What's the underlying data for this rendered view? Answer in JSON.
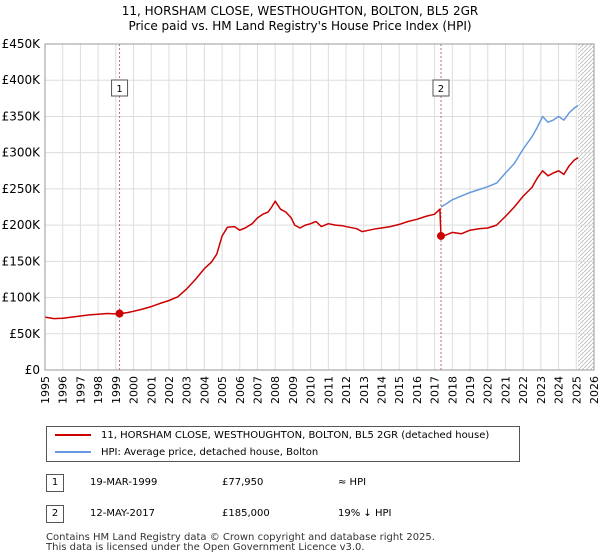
{
  "title_line1": "11, HORSHAM CLOSE, WESTHOUGHTON, BOLTON, BL5 2GR",
  "title_line2": "Price paid vs. HM Land Registry's House Price Index (HPI)",
  "chart_data": {
    "type": "line",
    "title": "Price paid vs. HM Land Registry's House Price Index (HPI)",
    "xlim": [
      1995,
      2026
    ],
    "ylim": [
      0,
      450000
    ],
    "y_ticks": [
      0,
      50000,
      100000,
      150000,
      200000,
      250000,
      300000,
      350000,
      400000,
      450000
    ],
    "y_tick_labels": [
      "£0",
      "£50K",
      "£100K",
      "£150K",
      "£200K",
      "£250K",
      "£300K",
      "£350K",
      "£400K",
      "£450K"
    ],
    "x_ticks": [
      1995,
      1996,
      1997,
      1998,
      1999,
      2000,
      2001,
      2002,
      2003,
      2004,
      2005,
      2006,
      2007,
      2008,
      2009,
      2010,
      2011,
      2012,
      2013,
      2014,
      2015,
      2016,
      2017,
      2018,
      2019,
      2020,
      2021,
      2022,
      2023,
      2024,
      2025,
      2026
    ],
    "grid": true,
    "series": [
      {
        "name": "11, HORSHAM CLOSE, WESTHOUGHTON, BOLTON, BL5 2GR (detached house)",
        "color": "#cc0000",
        "points": [
          [
            1995.0,
            73000
          ],
          [
            1995.5,
            71000
          ],
          [
            1996.0,
            71500
          ],
          [
            1996.5,
            73000
          ],
          [
            1997.0,
            74500
          ],
          [
            1997.5,
            76000
          ],
          [
            1998.0,
            77000
          ],
          [
            1998.5,
            78000
          ],
          [
            1999.0,
            77500
          ],
          [
            1999.21,
            77950
          ],
          [
            1999.6,
            79000
          ],
          [
            2000.0,
            81000
          ],
          [
            2000.5,
            84000
          ],
          [
            2001.0,
            87500
          ],
          [
            2001.5,
            92000
          ],
          [
            2002.0,
            96000
          ],
          [
            2002.5,
            101000
          ],
          [
            2003.0,
            112000
          ],
          [
            2003.5,
            125000
          ],
          [
            2004.0,
            140000
          ],
          [
            2004.4,
            149000
          ],
          [
            2004.7,
            160000
          ],
          [
            2005.0,
            185000
          ],
          [
            2005.3,
            197000
          ],
          [
            2005.7,
            198000
          ],
          [
            2006.0,
            193000
          ],
          [
            2006.3,
            196000
          ],
          [
            2006.7,
            202000
          ],
          [
            2007.0,
            210000
          ],
          [
            2007.3,
            215000
          ],
          [
            2007.6,
            218000
          ],
          [
            2007.8,
            225000
          ],
          [
            2008.0,
            233000
          ],
          [
            2008.3,
            222000
          ],
          [
            2008.6,
            218000
          ],
          [
            2008.9,
            210000
          ],
          [
            2009.1,
            200000
          ],
          [
            2009.4,
            196000
          ],
          [
            2009.7,
            200000
          ],
          [
            2010.0,
            202000
          ],
          [
            2010.3,
            205000
          ],
          [
            2010.6,
            198000
          ],
          [
            2011.0,
            202000
          ],
          [
            2011.4,
            200000
          ],
          [
            2011.8,
            199000
          ],
          [
            2012.2,
            197000
          ],
          [
            2012.6,
            195000
          ],
          [
            2012.9,
            191000
          ],
          [
            2013.3,
            193000
          ],
          [
            2013.7,
            195000
          ],
          [
            2014.0,
            196000
          ],
          [
            2014.5,
            198000
          ],
          [
            2015.0,
            201000
          ],
          [
            2015.5,
            205000
          ],
          [
            2016.0,
            208000
          ],
          [
            2016.5,
            212000
          ],
          [
            2017.0,
            215000
          ],
          [
            2017.3,
            222000
          ],
          [
            2017.36,
            185000
          ],
          [
            2017.6,
            186000
          ],
          [
            2018.0,
            190000
          ],
          [
            2018.5,
            188000
          ],
          [
            2019.0,
            193000
          ],
          [
            2019.5,
            195000
          ],
          [
            2020.0,
            196000
          ],
          [
            2020.5,
            200000
          ],
          [
            2021.0,
            212000
          ],
          [
            2021.5,
            225000
          ],
          [
            2022.0,
            240000
          ],
          [
            2022.5,
            252000
          ],
          [
            2022.8,
            265000
          ],
          [
            2023.1,
            275000
          ],
          [
            2023.4,
            268000
          ],
          [
            2023.7,
            272000
          ],
          [
            2024.0,
            275000
          ],
          [
            2024.3,
            270000
          ],
          [
            2024.6,
            282000
          ],
          [
            2024.9,
            290000
          ],
          [
            2025.1,
            293000
          ]
        ]
      },
      {
        "name": "HPI: Average price, detached house, Bolton",
        "color": "#6699dd",
        "points": [
          [
            2017.36,
            225000
          ],
          [
            2017.7,
            230000
          ],
          [
            2018.0,
            235000
          ],
          [
            2018.5,
            240000
          ],
          [
            2019.0,
            245000
          ],
          [
            2019.5,
            249000
          ],
          [
            2020.0,
            253000
          ],
          [
            2020.5,
            258000
          ],
          [
            2021.0,
            272000
          ],
          [
            2021.5,
            285000
          ],
          [
            2022.0,
            305000
          ],
          [
            2022.5,
            322000
          ],
          [
            2022.8,
            335000
          ],
          [
            2023.1,
            350000
          ],
          [
            2023.4,
            342000
          ],
          [
            2023.7,
            345000
          ],
          [
            2024.0,
            350000
          ],
          [
            2024.3,
            345000
          ],
          [
            2024.6,
            355000
          ],
          [
            2024.9,
            362000
          ],
          [
            2025.1,
            365000
          ]
        ]
      }
    ],
    "markers": [
      {
        "label": "1",
        "x": 1999.21,
        "y": 77950
      },
      {
        "label": "2",
        "x": 2017.36,
        "y": 185000
      }
    ],
    "hatch_from": 2025.1
  },
  "legend": {
    "red_label": "11, HORSHAM CLOSE, WESTHOUGHTON, BOLTON, BL5 2GR (detached house)",
    "blue_label": "HPI: Average price, detached house, Bolton"
  },
  "transactions": [
    {
      "num": "1",
      "date": "19-MAR-1999",
      "price": "£77,950",
      "hpi": "≈ HPI"
    },
    {
      "num": "2",
      "date": "12-MAY-2017",
      "price": "£185,000",
      "hpi": "19% ↓ HPI"
    }
  ],
  "footer_line1": "Contains HM Land Registry data © Crown copyright and database right 2025.",
  "footer_line2": "This data is licensed under the Open Government Licence v3.0."
}
